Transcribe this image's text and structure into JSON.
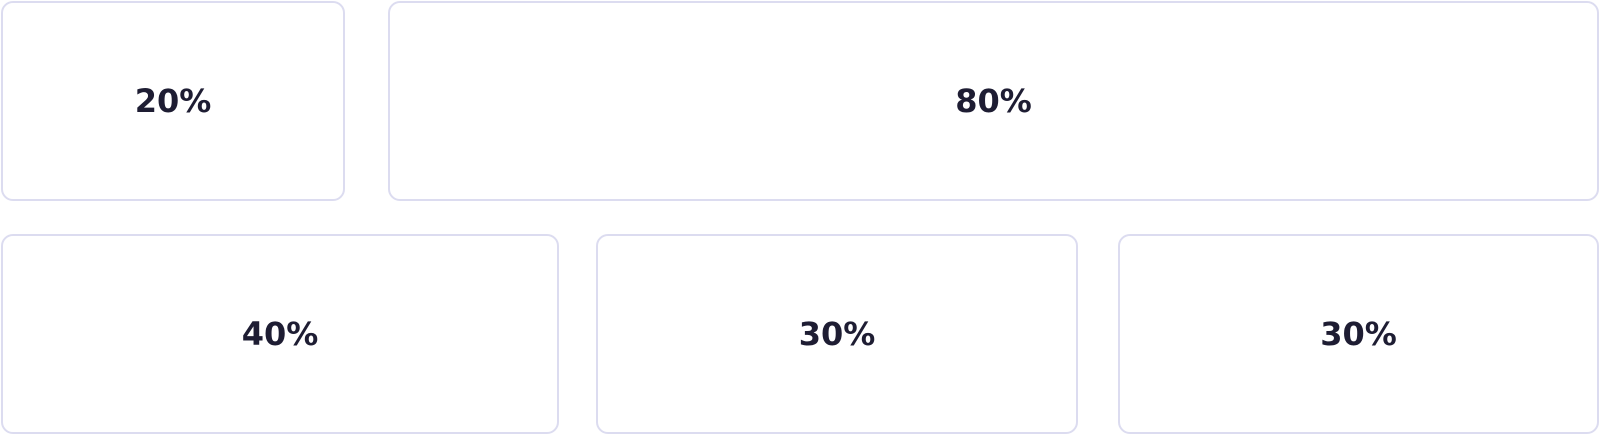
{
  "rows": [
    {
      "cells": [
        {
          "label": "20%"
        },
        {
          "label": "80%"
        }
      ]
    },
    {
      "cells": [
        {
          "label": "40%"
        },
        {
          "label": "30%"
        },
        {
          "label": "30%"
        }
      ]
    }
  ],
  "colors": {
    "border": "#dcdcf0",
    "text": "#1e1d33",
    "background": "#ffffff"
  }
}
